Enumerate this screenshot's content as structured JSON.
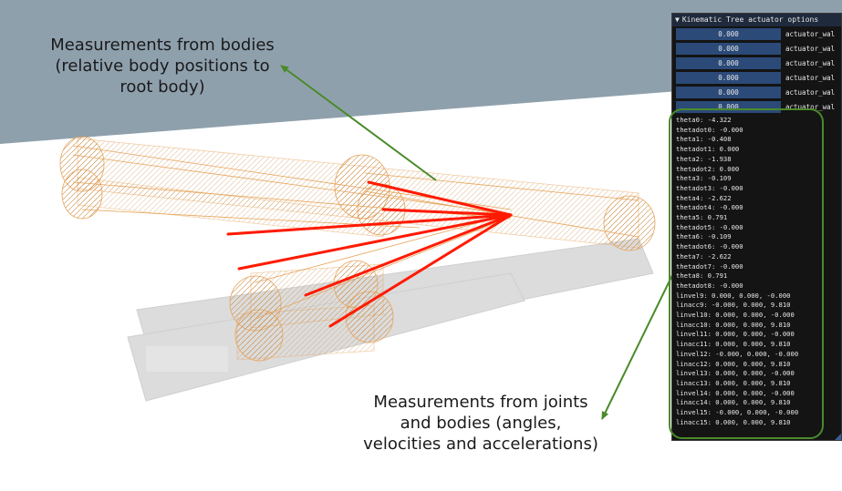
{
  "colors": {
    "sky": "#8fa0ad",
    "floor": "#ffffff",
    "wireframe": "#e7a45a",
    "measurement_lines": "#ff1a00",
    "callout": "#4a8a2a",
    "panel_bg": "#141414",
    "panel_field": "#2b4a78"
  },
  "annotations": {
    "top": "Measurements from bodies\n(relative body positions to\nroot body)",
    "bottom": "Measurements from joints\nand bodies (angles,\nvelocities and accelerations)"
  },
  "panel": {
    "title": "Kinematic Tree actuator options",
    "actuators": [
      {
        "value": "0.000",
        "name": "actuator_wal"
      },
      {
        "value": "0.000",
        "name": "actuator_wal"
      },
      {
        "value": "0.000",
        "name": "actuator_wal"
      },
      {
        "value": "0.000",
        "name": "actuator_wal"
      },
      {
        "value": "0.000",
        "name": "actuator_wal"
      },
      {
        "value": "0.000",
        "name": "actuator_wal"
      }
    ],
    "readouts": [
      "theta0: -4.322",
      "thetadot0: -0.000",
      "theta1: -0.408",
      "thetadot1: 0.000",
      "theta2: -1.938",
      "thetadot2: 0.000",
      "theta3: -0.109",
      "thetadot3: -0.000",
      "theta4: -2.622",
      "thetadot4: -0.000",
      "theta5: 0.791",
      "thetadot5: -0.000",
      "theta6: -0.109",
      "thetadot6: -0.000",
      "theta7: -2.622",
      "thetadot7: -0.000",
      "theta8: 0.791",
      "thetadot8: -0.000",
      "linvel9: 0.000, 0.000, -0.000",
      "linacc9: -0.000, 0.000, 9.810",
      "linvel10: 0.000, 0.000, -0.000",
      "linacc10: 0.000, 0.000, 9.810",
      "linvel11: 0.000, 0.000, -0.000",
      "linacc11: 0.000, 0.000, 9.810",
      "linvel12: -0.000, 0.000, -0.000",
      "linacc12: 0.000, 0.000, 9.810",
      "linvel13: 0.000, 0.000, -0.000",
      "linacc13: 0.000, 0.000, 9.810",
      "linvel14: 0.000, 0.000, -0.000",
      "linacc14: 0.000, 0.000, 9.810",
      "linvel15: -0.000, 0.000, -0.000",
      "linacc15: 0.000, 0.000, 9.810"
    ]
  }
}
